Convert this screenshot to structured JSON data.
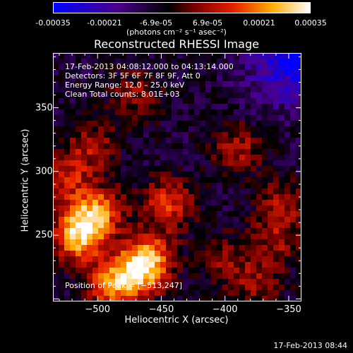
{
  "colorbar": {
    "ticks": [
      "-0.00035",
      "-0.00021",
      "-6.9e-05",
      "6.9e-05",
      "0.00021",
      "0.00035"
    ],
    "unit": "(photons cm⁻² s⁻¹ asec⁻²)"
  },
  "chart_data": {
    "type": "heatmap",
    "title": "Reconstructed RHESSI Image",
    "xlabel": "Heliocentric X (arcsec)",
    "ylabel": "Heliocentric Y (arcsec)",
    "xlim": [
      -535,
      -340
    ],
    "ylim": [
      198,
      393
    ],
    "xticks": [
      -500,
      -450,
      -400,
      -350
    ],
    "xtick_labels": [
      "−500",
      "−450",
      "−400",
      "−350"
    ],
    "yticks": [
      250,
      300,
      350
    ],
    "ytick_labels": [
      "250",
      "300",
      "350"
    ],
    "colorscale_range": [
      -0.00035,
      0.00035
    ],
    "annotations": [
      "17-Feb-2013 04:08:12.000  to 04:13:14.000",
      "Detectors: 3F 5F 6F 7F 8F 9F, Att 0",
      "Energy Range: 12.0 – 25.0 keV",
      "Clean     Total counts: 8.01E+03"
    ],
    "peak_label": "Position of Peak = [−513,247]",
    "hotspots": [
      {
        "x": -515,
        "y": 250,
        "v": 0.00035
      },
      {
        "x": -500,
        "y": 268,
        "v": 0.00028
      },
      {
        "x": -460,
        "y": 232,
        "v": 0.0003
      },
      {
        "x": -470,
        "y": 218,
        "v": 0.00022
      },
      {
        "x": -490,
        "y": 210,
        "v": 0.00025
      },
      {
        "x": -445,
        "y": 275,
        "v": 0.00022
      },
      {
        "x": -525,
        "y": 295,
        "v": 0.00018
      },
      {
        "x": -505,
        "y": 320,
        "v": 0.00015
      },
      {
        "x": -470,
        "y": 360,
        "v": 0.00012
      },
      {
        "x": -390,
        "y": 318,
        "v": 0.00016
      },
      {
        "x": -355,
        "y": 275,
        "v": 0.00015
      },
      {
        "x": -360,
        "y": 245,
        "v": 0.00013
      },
      {
        "x": -375,
        "y": 210,
        "v": 0.00012
      },
      {
        "x": -400,
        "y": 230,
        "v": 0.00012
      }
    ]
  },
  "footer": {
    "timestamp": "17-Feb-2013 08:44"
  }
}
